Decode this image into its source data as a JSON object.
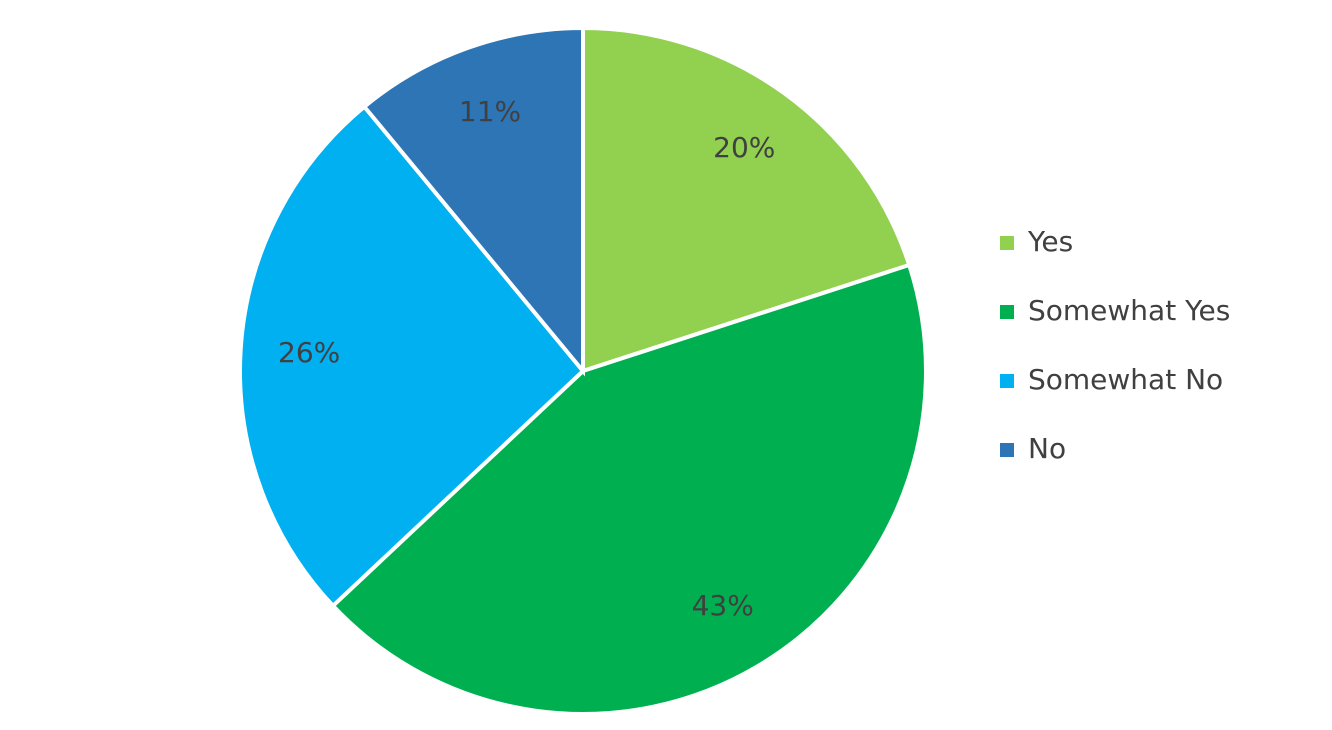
{
  "chart_data": {
    "type": "pie",
    "categories": [
      "Yes",
      "Somewhat Yes",
      "Somewhat No",
      "No"
    ],
    "values": [
      20,
      43,
      26,
      11
    ],
    "value_labels": [
      "20%",
      "43%",
      "26%",
      "11%"
    ],
    "colors": [
      "#92d050",
      "#00b050",
      "#00b0f0",
      "#2e75b6"
    ],
    "legend": "right"
  }
}
